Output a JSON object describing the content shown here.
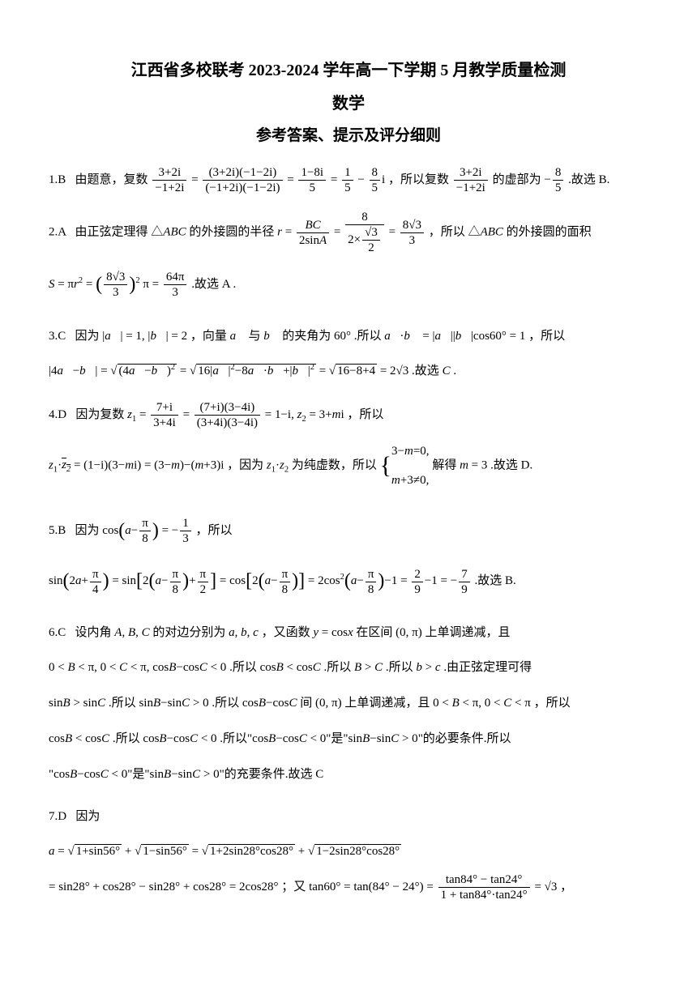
{
  "header": {
    "title_main": "江西省多校联考 2023-2024 学年高一下学期 5 月教学质量检测",
    "title_sub": "数学",
    "title_section": "参考答案、提示及评分细则"
  },
  "answers": {
    "q1": {
      "num": "1.B",
      "text1": "由题意，复数",
      "text2": "，所以复数",
      "text3": "的虚部为",
      "text4": ".故选 B."
    },
    "q2": {
      "num": "2.A",
      "text1": "由正弦定理得",
      "text2": "的外接圆的半径",
      "text3": "，所以",
      "text4": "的外接圆的面积",
      "text5": ".故选 A ."
    },
    "q3": {
      "num": "3.C",
      "text1": "因为",
      "text2": "，向量",
      "text3": "与",
      "text4": "的夹角为",
      "text5": ".所以",
      "text6": "，所以",
      "text7": ".故选"
    },
    "q4": {
      "num": "4.D",
      "text1": "因为复数",
      "text2": "，所以",
      "text3": "，因为",
      "text4": "为纯虚数，所以",
      "text5": "解得",
      "text6": ".故选 D."
    },
    "q5": {
      "num": "5.B",
      "text1": "因为",
      "text2": "，所以",
      "text3": ".故选 B."
    },
    "q6": {
      "num": "6.C",
      "text1": "设内角",
      "text2": "的对边分别为",
      "text3": "，又函数",
      "text4": "在区间",
      "text5": "上单调递减，且",
      "text6": ".所以",
      "text7": ".所以",
      "text8": ".所以",
      "text9": ".由正弦定理可得",
      "text10": ".所以",
      "text11": ".所以",
      "text12": "间",
      "text13": "上单调递减，且",
      "text14": "，所以",
      "text15": ".所以",
      "text16": ".所以\"",
      "text17": "\"是\"",
      "text18": "\"的必要条件.所以",
      "text19": "\"",
      "text20": "\"是\"",
      "text21": "\"的充要条件.故选 C"
    },
    "q7": {
      "num": "7.D",
      "text1": "因为",
      "text2": "；又"
    }
  },
  "styling": {
    "body_width": 860,
    "body_height": 1216,
    "background_color": "#ffffff",
    "text_color": "#000000",
    "title_fontsize": 20,
    "body_fontsize": 15,
    "font_family": "SimSun"
  }
}
